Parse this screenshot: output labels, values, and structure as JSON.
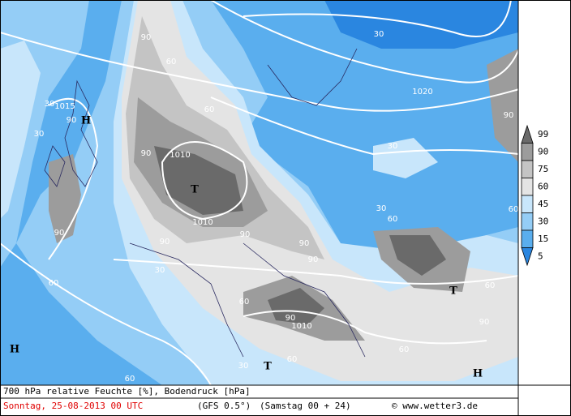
{
  "map": {
    "labels": [
      "30",
      "60",
      "90",
      "30",
      "1015",
      "90",
      "H",
      "60",
      "90",
      "1010",
      "T",
      "1010",
      "90",
      "90",
      "90",
      "90",
      "90",
      "30",
      "1020",
      "90",
      "30",
      "60",
      "30",
      "60",
      "T",
      "60",
      "90",
      "1010",
      "90",
      "H",
      "T",
      "30",
      "60",
      "60",
      "H",
      "60",
      "60",
      "30",
      "60"
    ],
    "legend": {
      "labels": [
        99,
        90,
        75,
        60,
        45,
        30,
        15,
        5
      ],
      "colors": [
        "#6a6a6a",
        "#9c9c9c",
        "#c4c4c4",
        "#e4e4e4",
        "#c8e6fb",
        "#94cdf6",
        "#5aaeee",
        "#2a86e0"
      ]
    }
  },
  "footer": {
    "title": "700 hPa relative Feuchte [%], Bodendruck [hPa]",
    "date": "Sonntag, 25-08-2013  00 UTC",
    "model": "(GFS 0.5°)",
    "run": "(Samstag 00 + 24)",
    "source": "© www.wetter3.de"
  }
}
